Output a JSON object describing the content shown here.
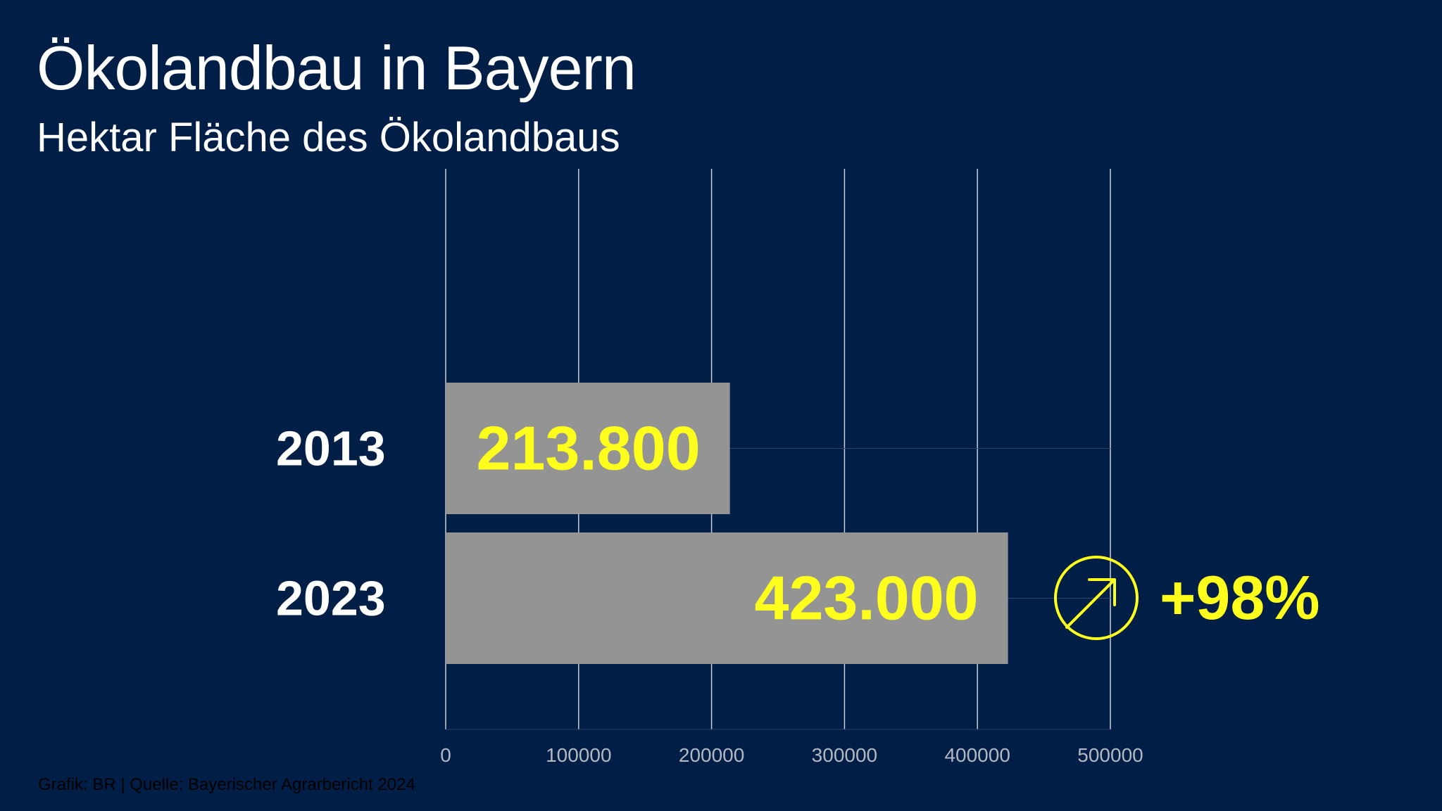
{
  "title": "Ökolandbau in Bayern",
  "subtitle": "Hektar Fläche des Ökolandbaus",
  "source": "Grafik: BR | Quelle: Bayerischer Agrarbericht 2024",
  "colors": {
    "background": "#001e46",
    "bar": "#949494",
    "value_label": "#ffff1e",
    "category_label": "#ffffff",
    "gridline": "#c8cdd6",
    "tick_label": "#b3b9c3"
  },
  "chart_data": {
    "type": "bar",
    "orientation": "horizontal",
    "categories": [
      "2013",
      "2023"
    ],
    "values": [
      213800,
      423000
    ],
    "value_labels": [
      "213.800",
      "423.000"
    ],
    "xlim": [
      0,
      500000
    ],
    "xticks": [
      0,
      100000,
      200000,
      300000,
      400000,
      500000
    ],
    "xtick_labels": [
      "0",
      "100000",
      "200000",
      "300000",
      "400000",
      "500000"
    ],
    "grid": true,
    "annotation": {
      "text": "+98%",
      "icon": "arrow-up-right-circle-icon"
    }
  }
}
